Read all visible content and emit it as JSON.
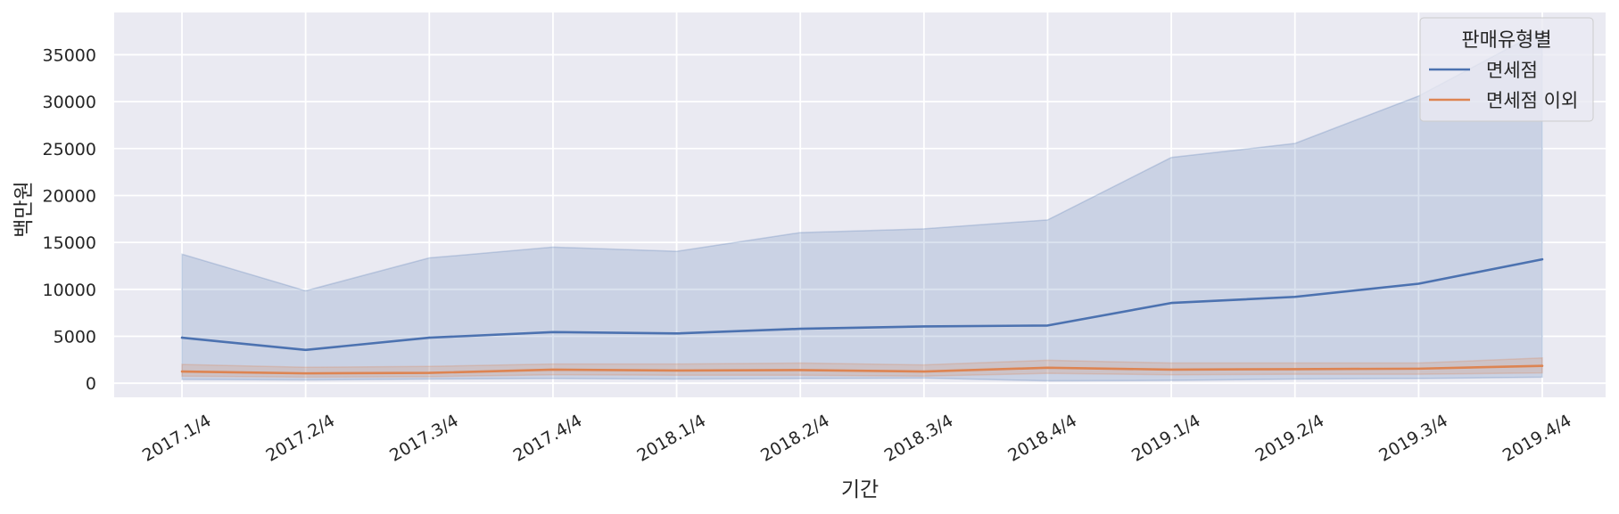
{
  "chart_data": {
    "type": "line",
    "xlabel": "기간",
    "ylabel": "백만원",
    "categories": [
      "2017.1/4",
      "2017.2/4",
      "2017.3/4",
      "2017.4/4",
      "2018.1/4",
      "2018.2/4",
      "2018.3/4",
      "2018.4/4",
      "2019.1/4",
      "2019.2/4",
      "2019.3/4",
      "2019.4/4"
    ],
    "ylim": [
      -1500,
      39500
    ],
    "yticks": [
      0,
      5000,
      10000,
      15000,
      20000,
      25000,
      30000,
      35000
    ],
    "ytick_labels": [
      "0",
      "5000",
      "10000",
      "15000",
      "20000",
      "25000",
      "30000",
      "35000"
    ],
    "grid": true,
    "legend": {
      "title": "판매유형별",
      "placement": "top-right"
    },
    "series": [
      {
        "name": "면세점",
        "color": "#4c72b0",
        "values": [
          4850,
          3550,
          4850,
          5450,
          5300,
          5800,
          6050,
          6150,
          8550,
          9200,
          10600,
          13200
        ],
        "band_upper": [
          13750,
          9850,
          13350,
          14500,
          14050,
          16050,
          16450,
          17400,
          24050,
          25550,
          30600,
          37600
        ],
        "band_lower": [
          400,
          350,
          450,
          500,
          450,
          500,
          550,
          250,
          300,
          450,
          500,
          650
        ]
      },
      {
        "name": "면세점 이외",
        "color": "#dd8452",
        "values": [
          1250,
          1050,
          1100,
          1450,
          1350,
          1400,
          1250,
          1650,
          1450,
          1500,
          1550,
          1850
        ],
        "band_upper": [
          2000,
          1700,
          1800,
          2050,
          2050,
          2150,
          1950,
          2450,
          2150,
          2150,
          2150,
          2700
        ],
        "band_lower": [
          750,
          650,
          700,
          900,
          850,
          850,
          750,
          1050,
          900,
          950,
          950,
          1100
        ]
      }
    ]
  }
}
